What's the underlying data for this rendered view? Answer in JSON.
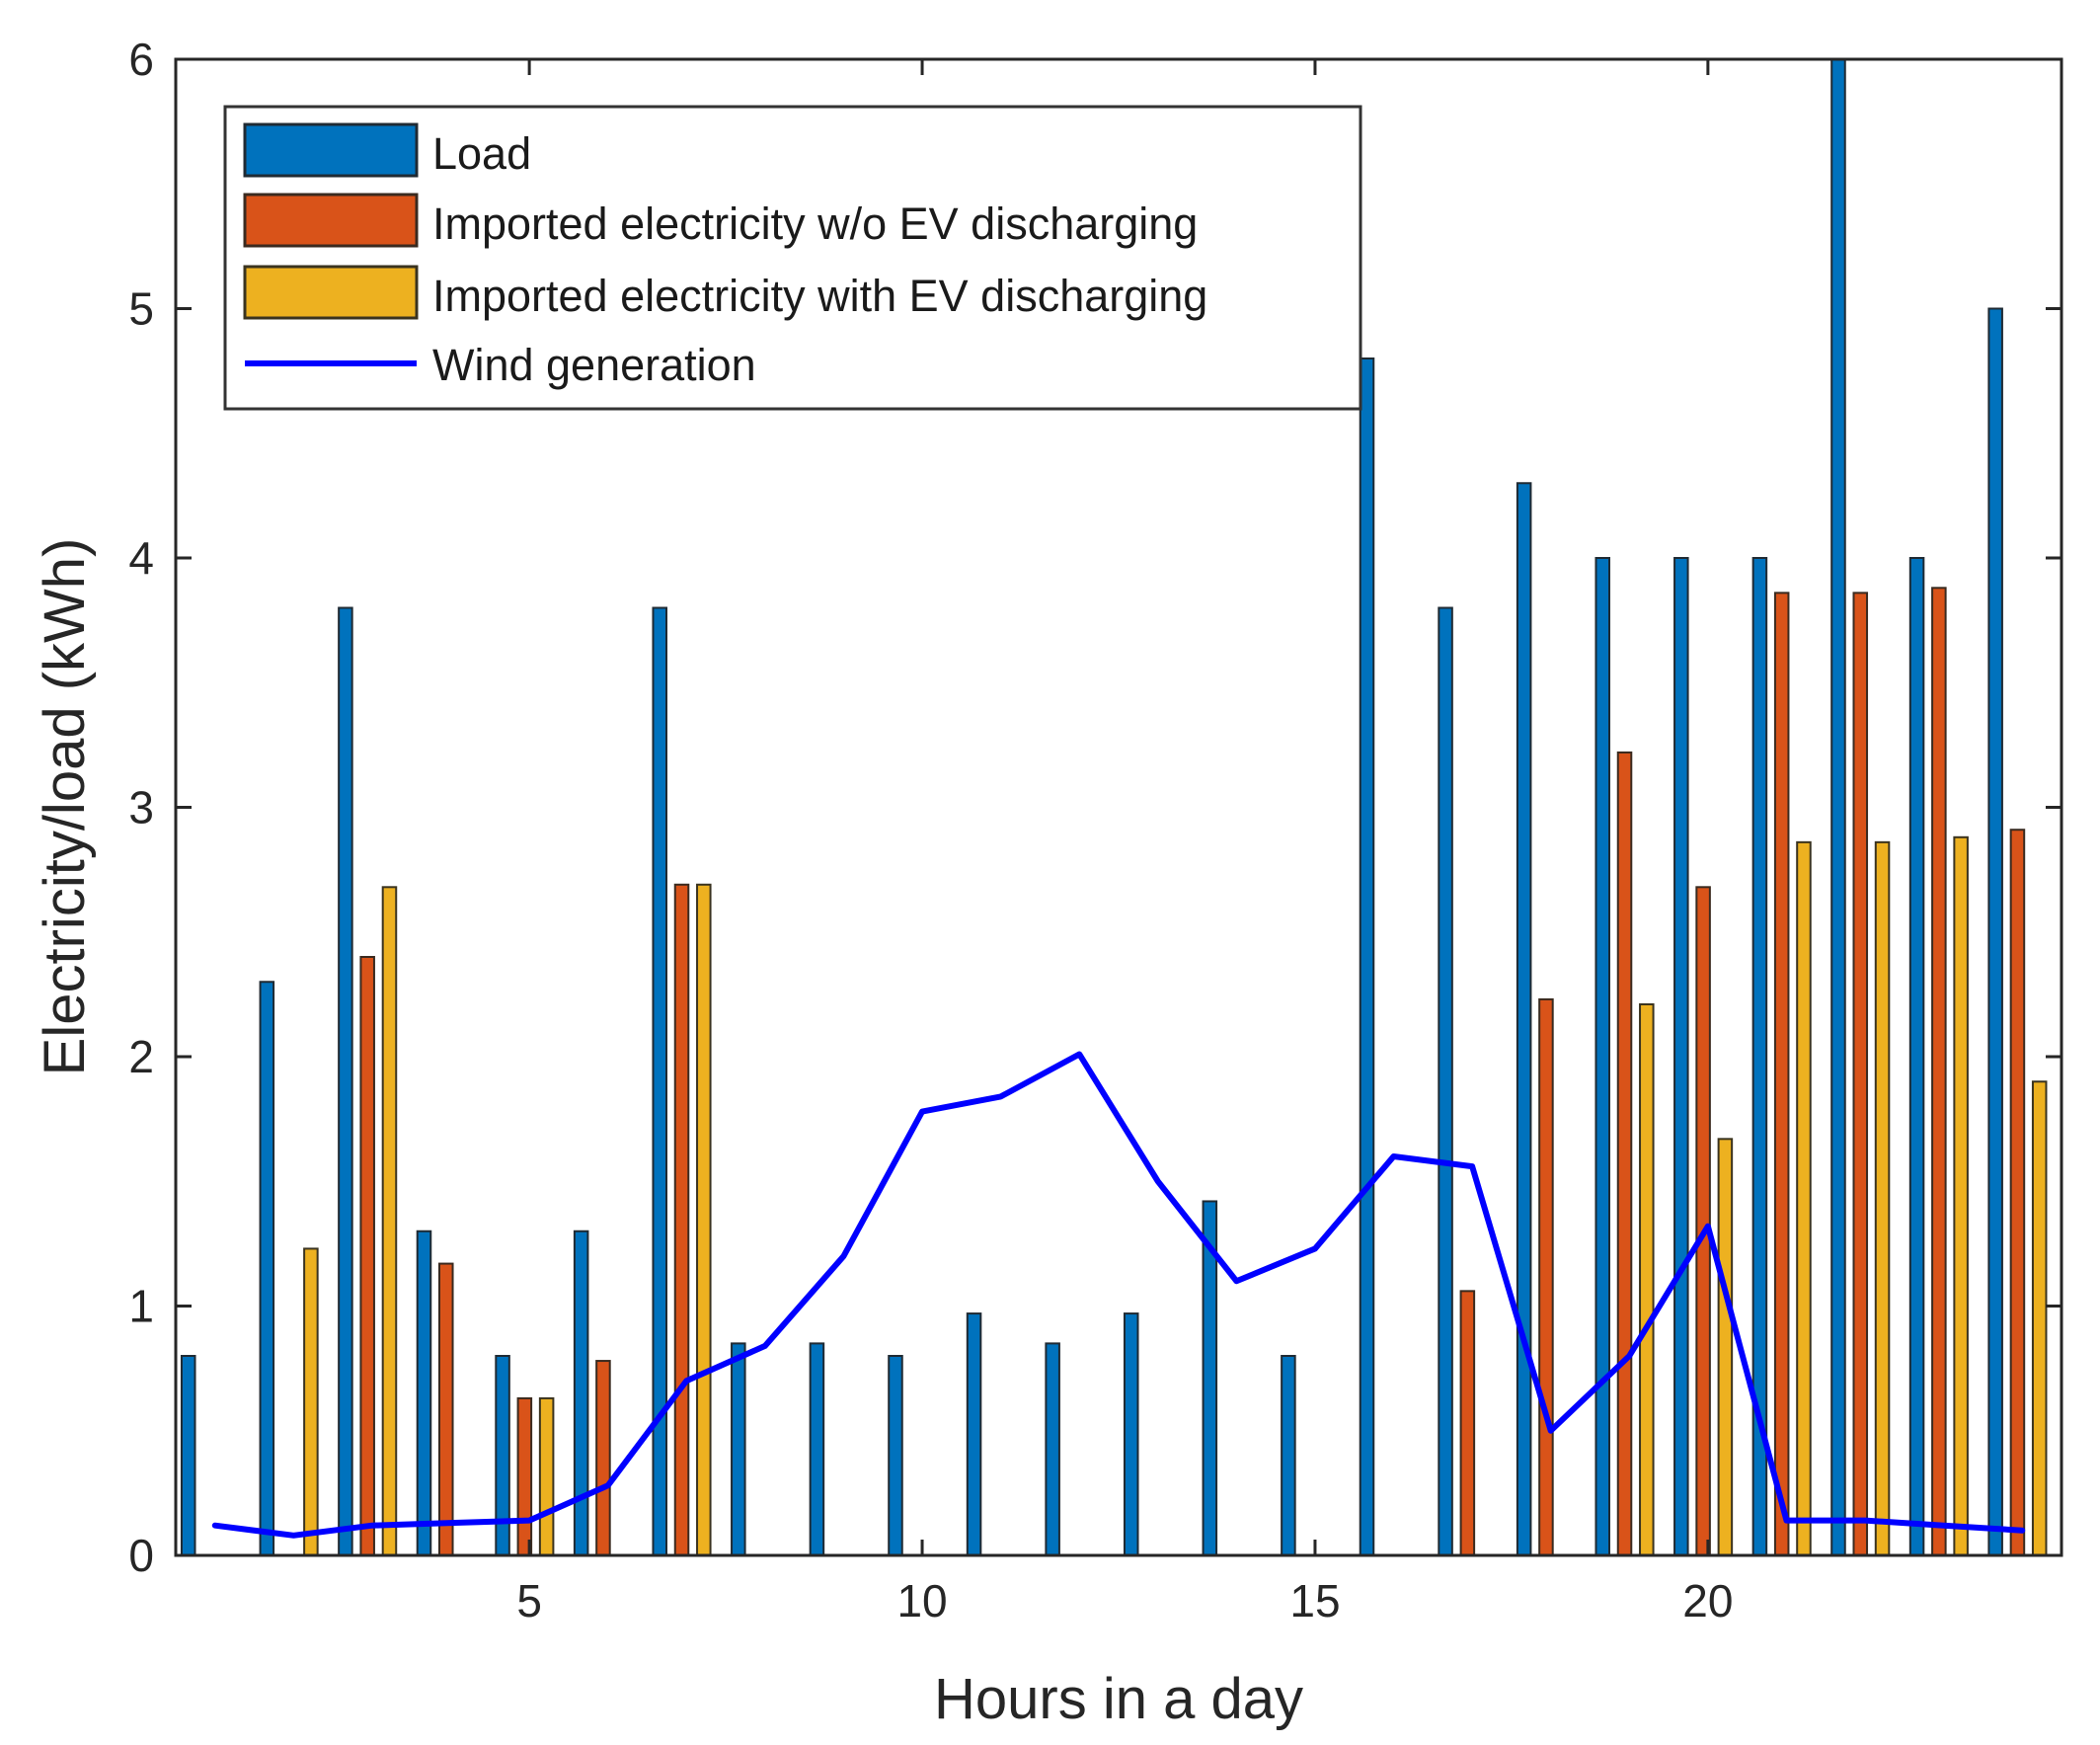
{
  "chart_data": {
    "type": "bar",
    "title": "",
    "xlabel": "Hours in a day",
    "ylabel": "Electricity/load (kWh)",
    "xlim": [
      0.5,
      24.5
    ],
    "ylim": [
      0,
      6
    ],
    "x": [
      1,
      2,
      3,
      4,
      5,
      6,
      7,
      8,
      9,
      10,
      11,
      12,
      13,
      14,
      15,
      16,
      17,
      18,
      19,
      20,
      21,
      22,
      23,
      24
    ],
    "x_ticks": [
      5,
      10,
      15,
      20
    ],
    "x_tick_labels": [
      "5",
      "10",
      "15",
      "20"
    ],
    "y_ticks": [
      0,
      1,
      2,
      3,
      4,
      5,
      6
    ],
    "y_tick_labels": [
      "0",
      "1",
      "2",
      "3",
      "4",
      "5",
      "6"
    ],
    "grid": false,
    "legend_position": "top-left",
    "series": [
      {
        "name": "Load",
        "kind": "bar",
        "color": "#0072BD",
        "edge_color": "#1f2a33",
        "values": [
          0.8,
          2.3,
          3.8,
          1.3,
          0.8,
          1.3,
          3.8,
          0.85,
          0.85,
          0.8,
          0.97,
          0.85,
          0.97,
          1.42,
          0.8,
          4.8,
          3.8,
          4.3,
          4.0,
          4.0,
          4.0,
          6.0,
          4.0,
          5.0
        ]
      },
      {
        "name": "Imported electricity w/o EV discharging",
        "kind": "bar",
        "color": "#D95319",
        "edge_color": "#3a2a1f",
        "values": [
          0,
          0,
          2.4,
          1.17,
          0.63,
          0.78,
          2.69,
          0,
          0,
          0,
          0,
          0,
          0,
          0,
          0,
          0,
          1.06,
          2.23,
          3.22,
          2.68,
          3.86,
          3.86,
          3.88,
          2.91
        ]
      },
      {
        "name": "Imported electricity with EV discharging",
        "kind": "bar",
        "color": "#EDB120",
        "edge_color": "#3a331f",
        "values": [
          0,
          1.23,
          2.68,
          0,
          0.63,
          0,
          2.69,
          0,
          0,
          0,
          0,
          0,
          0,
          0,
          0,
          0,
          0,
          0,
          2.21,
          1.67,
          2.86,
          2.86,
          2.88,
          1.9
        ]
      },
      {
        "name": "Wind generation",
        "kind": "line",
        "color": "#0000FF",
        "values": [
          0.12,
          0.08,
          0.12,
          0.13,
          0.14,
          0.28,
          0.7,
          0.84,
          1.2,
          1.78,
          1.84,
          2.01,
          1.5,
          1.1,
          1.23,
          1.6,
          1.56,
          0.5,
          0.8,
          1.32,
          0.14,
          0.14,
          0.12,
          0.1
        ]
      }
    ]
  }
}
